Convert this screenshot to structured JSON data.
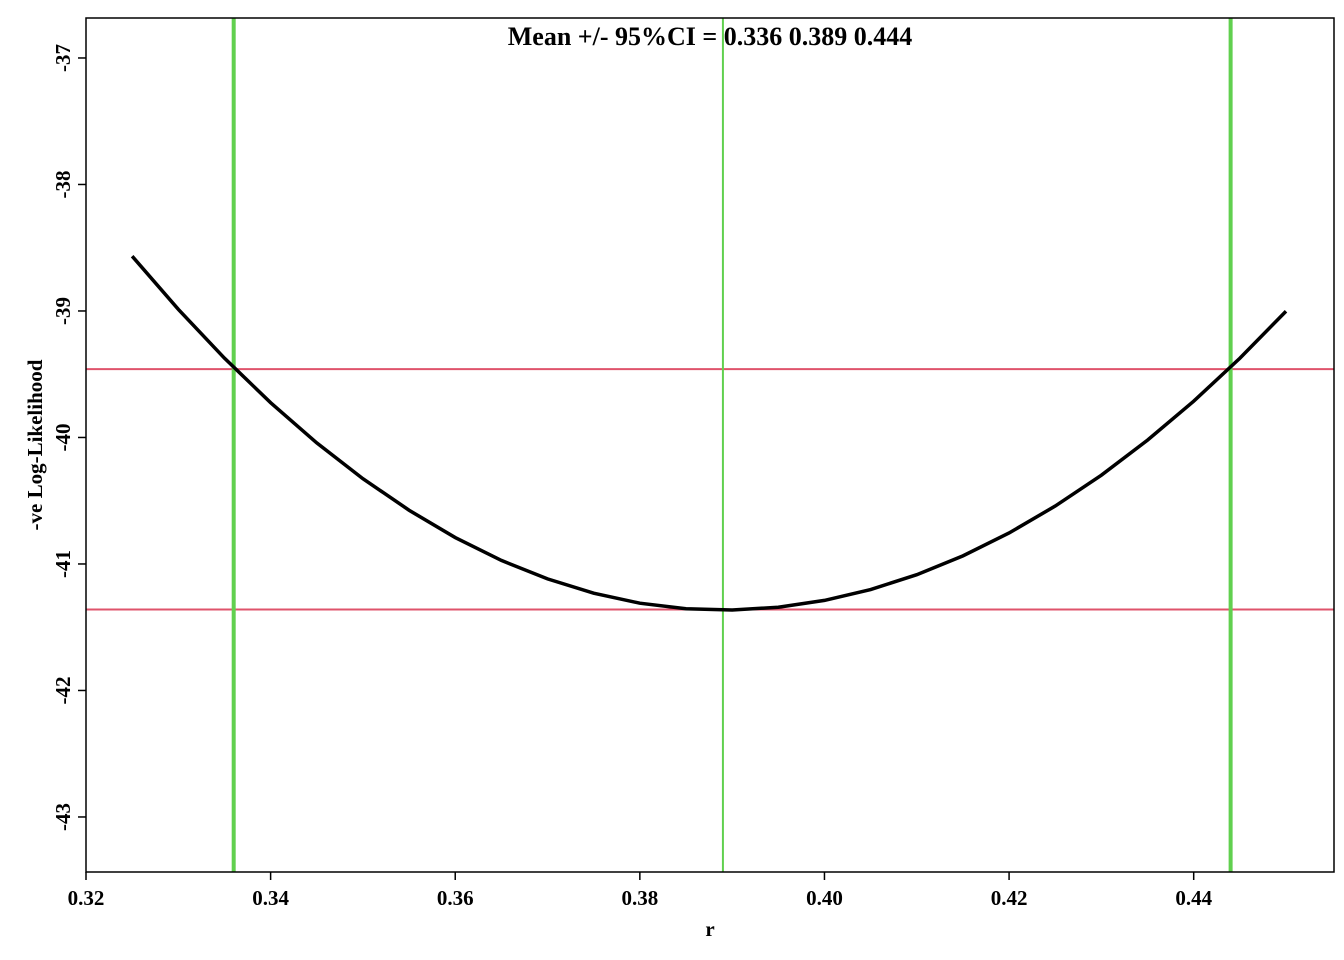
{
  "chart_data": {
    "type": "line",
    "title": "Mean +/- 95%CI = 0.336   0.389    0.444",
    "xlabel": "r",
    "ylabel": "-ve Log-Likelihood",
    "x": [
      0.325,
      0.33,
      0.335,
      0.34,
      0.345,
      0.35,
      0.355,
      0.36,
      0.365,
      0.37,
      0.375,
      0.38,
      0.385,
      0.39,
      0.395,
      0.4,
      0.405,
      0.41,
      0.415,
      0.42,
      0.425,
      0.43,
      0.435,
      0.44,
      0.445,
      0.45
    ],
    "series": [
      {
        "color": "#000000",
        "values": [
          -38.567,
          -38.987,
          -39.373,
          -39.725,
          -40.043,
          -40.326,
          -40.575,
          -40.791,
          -40.972,
          -41.118,
          -41.231,
          -41.31,
          -41.354,
          -41.364,
          -41.342,
          -41.288,
          -41.202,
          -41.085,
          -40.936,
          -40.755,
          -40.542,
          -40.298,
          -40.021,
          -39.713,
          -39.374,
          -39.002
        ]
      }
    ],
    "vlines": [
      0.336,
      0.389,
      0.444
    ],
    "vline_color": "#61d04f",
    "hlines": [
      -39.46,
      -41.36
    ],
    "hline_color": "#df536b",
    "xlim": [
      0.32,
      0.4552
    ],
    "ylim": [
      -43.435,
      -36.684
    ],
    "xticks": [
      0.32,
      0.34,
      0.36,
      0.38,
      {
        "value": 0.4,
        "label": "0.40"
      },
      0.42,
      0.44
    ],
    "yticks": [
      -37,
      -38,
      -39,
      -40,
      -41,
      -42,
      -43
    ]
  }
}
